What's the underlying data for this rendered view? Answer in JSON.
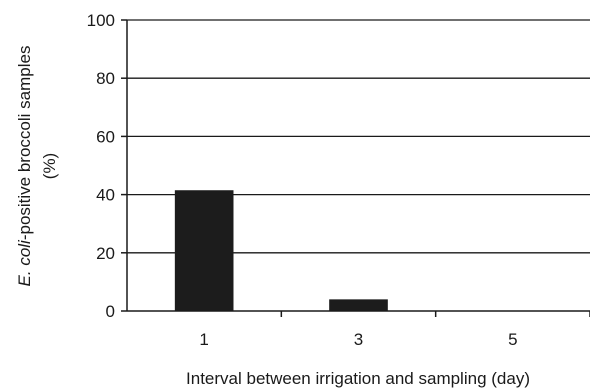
{
  "chart_data": {
    "type": "bar",
    "categories": [
      "1",
      "3",
      "5"
    ],
    "values": [
      41.5,
      4.0,
      0
    ],
    "xlabel": "Interval between irrigation and sampling (day)",
    "ylabel_italic": "E. coli",
    "ylabel_rest": "-positive broccoli samples",
    "ylabel_unit": "(%)",
    "ylim": [
      0,
      100
    ],
    "yticks": [
      0,
      20,
      40,
      60,
      80,
      100
    ],
    "ytick_labels": [
      "0",
      "20",
      "40",
      "60",
      "80",
      "100"
    ],
    "grid": true,
    "bar_color": "#1c1c1c",
    "grid_color": "#1a1a1a"
  }
}
